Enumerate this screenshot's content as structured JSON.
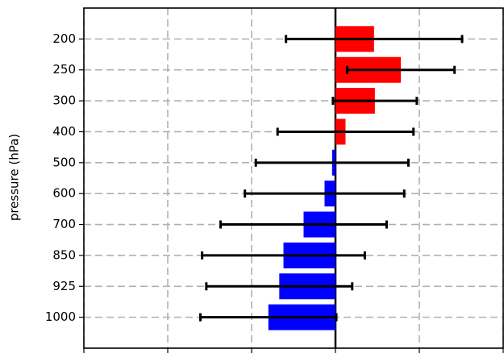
{
  "chart_data": {
    "type": "barh",
    "y_label": "pressure (hPa)",
    "categories": [
      "200",
      "250",
      "300",
      "400",
      "500",
      "600",
      "700",
      "850",
      "925",
      "1000"
    ],
    "values": [
      0.46,
      0.78,
      0.47,
      0.12,
      -0.04,
      -0.13,
      -0.38,
      -0.62,
      -0.67,
      -0.8
    ],
    "errors": [
      1.05,
      0.64,
      0.5,
      0.81,
      0.91,
      0.95,
      0.99,
      0.97,
      0.87,
      0.81
    ],
    "colors": [
      "#ff0000",
      "#ff0000",
      "#ff0000",
      "#ff0000",
      "#0000ff",
      "#0000ff",
      "#0000ff",
      "#0000ff",
      "#0000ff",
      "#0000ff"
    ],
    "error_color": "#000000",
    "xlim": [
      -3,
      2
    ],
    "xticks": [
      -3,
      -2,
      -1,
      0,
      1,
      2
    ],
    "grid": true
  }
}
